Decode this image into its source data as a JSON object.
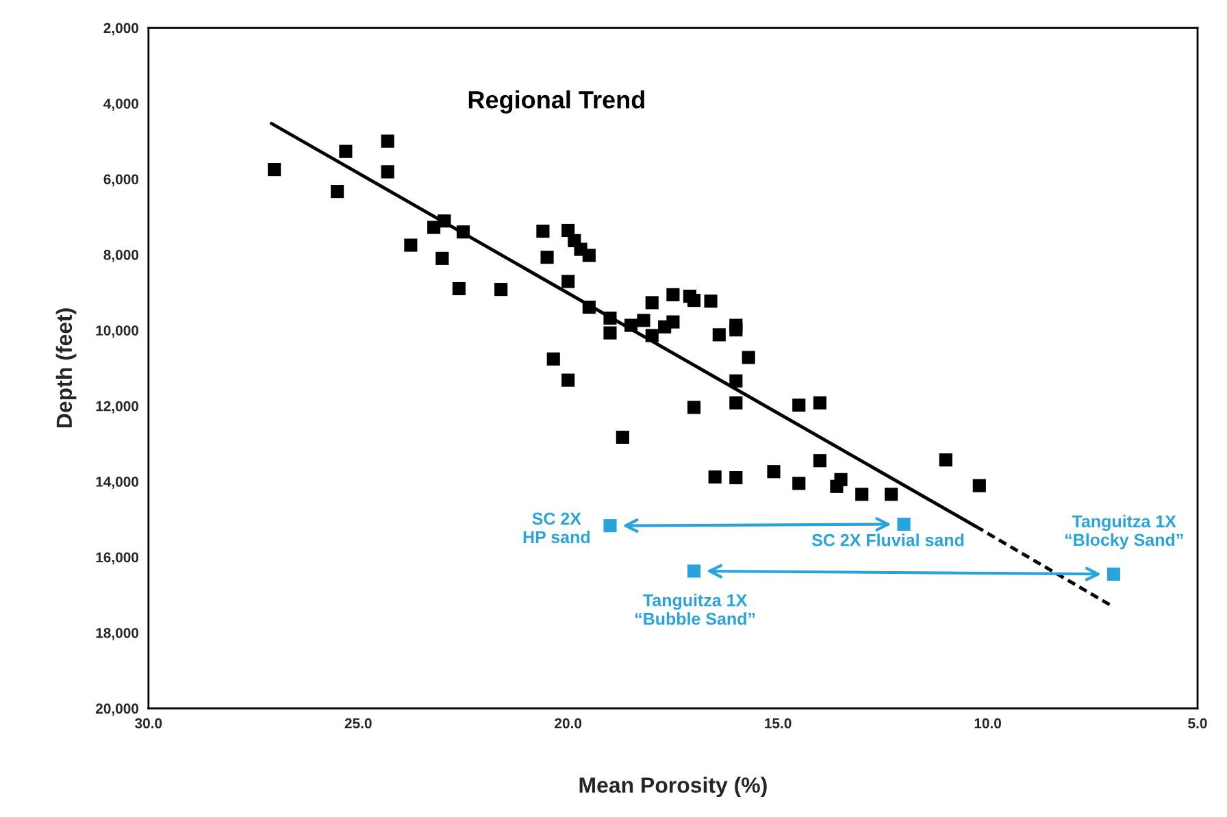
{
  "chart_data": {
    "type": "scatter",
    "xlabel": "Mean Porosity (%)",
    "ylabel": "Depth (feet)",
    "xlim": [
      30,
      5
    ],
    "ylim": [
      20000,
      2000
    ],
    "xticks": [
      {
        "value": 30,
        "label": "30.0"
      },
      {
        "value": 25,
        "label": "25.0"
      },
      {
        "value": 20,
        "label": "20.0"
      },
      {
        "value": 15,
        "label": "15.0"
      },
      {
        "value": 10,
        "label": "10.0"
      },
      {
        "value": 5,
        "label": "5.0"
      }
    ],
    "yticks": [
      {
        "value": 2000,
        "label": "2,000"
      },
      {
        "value": 4000,
        "label": "4,000"
      },
      {
        "value": 6000,
        "label": "6,000"
      },
      {
        "value": 8000,
        "label": "8,000"
      },
      {
        "value": 10000,
        "label": "10,000"
      },
      {
        "value": 12000,
        "label": "12,000"
      },
      {
        "value": 14000,
        "label": "14,000"
      },
      {
        "value": 16000,
        "label": "16,000"
      },
      {
        "value": 18000,
        "label": "18,000"
      },
      {
        "value": 20000,
        "label": "20,000"
      }
    ],
    "grid": false,
    "legend": false,
    "marker": "square",
    "series": [
      {
        "color": "#000000",
        "x": [
          27.0,
          25.5,
          25.3,
          24.3,
          24.3,
          23.75,
          23.2,
          22.95,
          23.0,
          22.5,
          22.6,
          21.6,
          20.6,
          20.5,
          20.0,
          19.85,
          19.7,
          19.5,
          20.0,
          19.5,
          20.35,
          20.0,
          19.0,
          19.0,
          18.5,
          18.2,
          18.0,
          18.0,
          17.7,
          17.5,
          17.5,
          17.1,
          17.0,
          16.6,
          16.4,
          16.0,
          16.0,
          15.7,
          16.0,
          16.0,
          17.0,
          18.7,
          16.5,
          16.0,
          15.1,
          14.5,
          14.0,
          14.0,
          14.5,
          13.5,
          13.6,
          13.0,
          12.3,
          11.0,
          10.2
        ],
        "values": [
          5750,
          6330,
          5270,
          5000,
          5810,
          7750,
          7280,
          7110,
          8100,
          7400,
          8900,
          8920,
          7380,
          8070,
          7360,
          7630,
          7860,
          8020,
          8710,
          9390,
          10760,
          11320,
          9680,
          10070,
          9870,
          9740,
          9270,
          10140,
          9910,
          9060,
          9780,
          9100,
          9210,
          9230,
          10120,
          9870,
          9990,
          10720,
          11340,
          11920,
          12040,
          12830,
          13880,
          13900,
          13740,
          11980,
          11920,
          13450,
          14050,
          13950,
          14130,
          14340,
          14340,
          13430,
          14110
        ]
      },
      {
        "color": "#29a3dc",
        "x": [
          19.0,
          12.0,
          17.0,
          7.0
        ],
        "values": [
          15170,
          15130,
          16370,
          16450
        ]
      },
      {
        "type": "line",
        "color": "#000000",
        "line_style": "solid",
        "marker": "none",
        "x": [
          27.07,
          10.28
        ],
        "values": [
          4530,
          15190
        ]
      },
      {
        "type": "line",
        "color": "#000000",
        "line_style": "dashed",
        "marker": "none",
        "x": [
          10.28,
          7.0
        ],
        "values": [
          15190,
          17320
        ]
      }
    ],
    "annotations": [
      "Regional Trend",
      "SC 2X\nHP sand",
      "SC 2X Fluvial sand",
      "Tanguitza 1X\n“Bubble Sand”",
      "Tanguitza 1X\n“Blocky Sand”"
    ]
  }
}
